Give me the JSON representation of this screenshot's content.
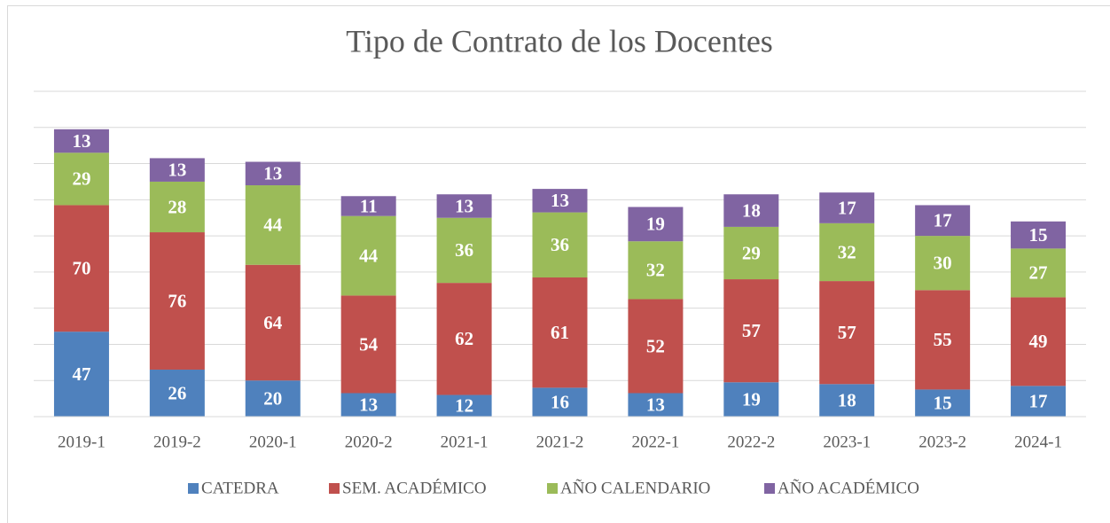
{
  "chart_data": {
    "type": "stacked_bar",
    "title": "Tipo de Contrato de los Docentes",
    "categories": [
      "2019-1",
      "2019-2",
      "2020-1",
      "2020-2",
      "2021-1",
      "2021-2",
      "2022-1",
      "2022-2",
      "2023-1",
      "2023-2",
      "2024-1"
    ],
    "series": [
      {
        "name": "CATEDRA",
        "color": "#4f81bd",
        "values": [
          47,
          26,
          20,
          13,
          12,
          16,
          13,
          19,
          18,
          15,
          17
        ]
      },
      {
        "name": "SEM. ACADÉMICO",
        "color": "#c0504d",
        "values": [
          70,
          76,
          64,
          54,
          62,
          61,
          52,
          57,
          57,
          55,
          49
        ]
      },
      {
        "name": "AÑO CALENDARIO",
        "color": "#9bbb59",
        "values": [
          29,
          28,
          44,
          44,
          36,
          36,
          32,
          29,
          32,
          30,
          27
        ]
      },
      {
        "name": "AÑO ACADÉMICO",
        "color": "#8064a2",
        "values": [
          13,
          13,
          13,
          11,
          13,
          13,
          19,
          18,
          17,
          17,
          15
        ]
      }
    ],
    "ylim": [
      0,
      180
    ],
    "yticks": [
      0,
      20,
      40,
      60,
      80,
      100,
      120,
      140,
      160,
      180
    ],
    "grid": true,
    "legend": "bottom"
  }
}
